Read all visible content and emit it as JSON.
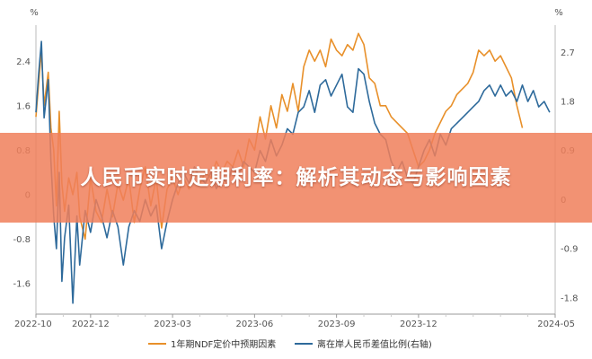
{
  "banner": {
    "title": "人民币实时定期利率：解析其动态与影响因素"
  },
  "chart_data": {
    "type": "line",
    "left_axis_unit": "%",
    "right_axis_unit": "%",
    "x_ticks": [
      "2022-10",
      "2022-12",
      "2023-03",
      "2023-06",
      "2023-09",
      "2023-12",
      "2024-05"
    ],
    "x_tick_positions": [
      0,
      2,
      5,
      8,
      11,
      14,
      19
    ],
    "x_range": [
      0,
      19
    ],
    "y_left_ticks": [
      2.4,
      1.6,
      0.8,
      0,
      -0.8,
      -1.6
    ],
    "y_left_tick_labels": [
      "2.4",
      "1.6",
      "0.8",
      "0",
      "-0.8",
      "-1.6"
    ],
    "y_left_range": [
      -2.15,
      3.05
    ],
    "y_right_ticks": [
      2.7,
      1.8,
      0.9,
      0,
      -0.9,
      -1.8
    ],
    "y_right_tick_labels": [
      "2.7",
      "1.8",
      "0.9",
      "0",
      "-0.9",
      "-1.8"
    ],
    "y_right_range": [
      -2.1,
      3.2
    ],
    "legend_position": "bottom",
    "grid": false,
    "series": [
      {
        "name": "1年期NDF定价中预期因素",
        "axis": "left",
        "color": "#e8902a",
        "points": [
          [
            0,
            1.4
          ],
          [
            0.1,
            2.0
          ],
          [
            0.2,
            2.6
          ],
          [
            0.3,
            1.6
          ],
          [
            0.45,
            2.2
          ],
          [
            0.55,
            1.2
          ],
          [
            0.65,
            0.8
          ],
          [
            0.75,
            -0.2
          ],
          [
            0.85,
            1.5
          ],
          [
            0.95,
            0.2
          ],
          [
            1.05,
            -0.3
          ],
          [
            1.2,
            0.3
          ],
          [
            1.35,
            0
          ],
          [
            1.5,
            0.4
          ],
          [
            1.6,
            -0.4
          ],
          [
            1.8,
            -0.8
          ],
          [
            2,
            0.3
          ],
          [
            2.2,
            -0.3
          ],
          [
            2.4,
            -0.5
          ],
          [
            2.6,
            0.1
          ],
          [
            2.8,
            -0.4
          ],
          [
            3,
            0.2
          ],
          [
            3.2,
            -0.1
          ],
          [
            3.4,
            0.3
          ],
          [
            3.6,
            -0.5
          ],
          [
            3.8,
            0.1
          ],
          [
            4,
            0.5
          ],
          [
            4.2,
            -0.2
          ],
          [
            4.4,
            0.3
          ],
          [
            4.6,
            -0.6
          ],
          [
            4.8,
            0.1
          ],
          [
            5,
            0.3
          ],
          [
            5.2,
            0
          ],
          [
            5.4,
            0.3
          ],
          [
            5.6,
            0.1
          ],
          [
            5.8,
            0.5
          ],
          [
            6,
            0.2
          ],
          [
            6.2,
            0.4
          ],
          [
            6.4,
            0.3
          ],
          [
            6.6,
            0.6
          ],
          [
            6.8,
            0.4
          ],
          [
            7,
            0.6
          ],
          [
            7.2,
            0.5
          ],
          [
            7.4,
            0.8
          ],
          [
            7.6,
            0.5
          ],
          [
            7.8,
            1.0
          ],
          [
            8,
            0.8
          ],
          [
            8.2,
            1.4
          ],
          [
            8.4,
            1.0
          ],
          [
            8.6,
            1.6
          ],
          [
            8.8,
            1.2
          ],
          [
            9,
            1.8
          ],
          [
            9.2,
            1.5
          ],
          [
            9.4,
            2.0
          ],
          [
            9.6,
            1.5
          ],
          [
            9.8,
            2.3
          ],
          [
            10,
            2.6
          ],
          [
            10.2,
            2.4
          ],
          [
            10.4,
            2.6
          ],
          [
            10.6,
            2.3
          ],
          [
            10.8,
            2.8
          ],
          [
            11,
            2.6
          ],
          [
            11.2,
            2.5
          ],
          [
            11.4,
            2.7
          ],
          [
            11.6,
            2.6
          ],
          [
            11.8,
            2.9
          ],
          [
            12,
            2.7
          ],
          [
            12.2,
            2.1
          ],
          [
            12.4,
            2.0
          ],
          [
            12.6,
            1.6
          ],
          [
            12.8,
            1.6
          ],
          [
            13,
            1.4
          ],
          [
            13.2,
            1.3
          ],
          [
            13.4,
            1.2
          ],
          [
            13.6,
            1.1
          ],
          [
            13.8,
            0.8
          ],
          [
            14,
            0.5
          ],
          [
            14.2,
            0.6
          ],
          [
            14.4,
            0.8
          ],
          [
            14.6,
            1.1
          ],
          [
            14.8,
            1.3
          ],
          [
            15,
            1.5
          ],
          [
            15.2,
            1.6
          ],
          [
            15.4,
            1.8
          ],
          [
            15.6,
            1.9
          ],
          [
            15.8,
            2.0
          ],
          [
            16,
            2.2
          ],
          [
            16.2,
            2.6
          ],
          [
            16.4,
            2.5
          ],
          [
            16.6,
            2.6
          ],
          [
            16.8,
            2.4
          ],
          [
            17,
            2.5
          ],
          [
            17.2,
            2.3
          ],
          [
            17.4,
            2.1
          ],
          [
            17.6,
            1.6
          ],
          [
            17.8,
            1.2
          ]
        ]
      },
      {
        "name": "离在岸人民币差值比例(右轴)",
        "axis": "right",
        "color": "#2e6a9b",
        "points": [
          [
            0,
            1.6
          ],
          [
            0.1,
            2.3
          ],
          [
            0.2,
            2.9
          ],
          [
            0.3,
            1.5
          ],
          [
            0.45,
            2.2
          ],
          [
            0.55,
            0.7
          ],
          [
            0.65,
            -0.3
          ],
          [
            0.75,
            -0.9
          ],
          [
            0.85,
            0.5
          ],
          [
            0.95,
            -1.5
          ],
          [
            1.05,
            -0.7
          ],
          [
            1.2,
            -0.1
          ],
          [
            1.35,
            -1.9
          ],
          [
            1.5,
            -0.3
          ],
          [
            1.6,
            -1.2
          ],
          [
            1.8,
            -0.2
          ],
          [
            2,
            -0.6
          ],
          [
            2.2,
            0
          ],
          [
            2.4,
            -0.3
          ],
          [
            2.6,
            -0.7
          ],
          [
            2.8,
            -0.2
          ],
          [
            3,
            -0.5
          ],
          [
            3.2,
            -1.2
          ],
          [
            3.4,
            -0.5
          ],
          [
            3.6,
            -0.2
          ],
          [
            3.8,
            -0.4
          ],
          [
            4,
            0
          ],
          [
            4.2,
            -0.3
          ],
          [
            4.4,
            -0.1
          ],
          [
            4.6,
            -0.9
          ],
          [
            4.8,
            -0.4
          ],
          [
            5,
            0
          ],
          [
            5.2,
            0.3
          ],
          [
            5.4,
            0.5
          ],
          [
            5.6,
            0.3
          ],
          [
            5.8,
            0.6
          ],
          [
            6,
            0.4
          ],
          [
            6.2,
            0.3
          ],
          [
            6.4,
            0.5
          ],
          [
            6.6,
            0.2
          ],
          [
            6.8,
            0.4
          ],
          [
            7,
            0.3
          ],
          [
            7.2,
            0.6
          ],
          [
            7.4,
            0.4
          ],
          [
            7.6,
            0.7
          ],
          [
            7.8,
            0.6
          ],
          [
            8,
            0.5
          ],
          [
            8.2,
            0.9
          ],
          [
            8.4,
            0.7
          ],
          [
            8.6,
            1.1
          ],
          [
            8.8,
            0.8
          ],
          [
            9,
            1.0
          ],
          [
            9.2,
            1.3
          ],
          [
            9.4,
            1.2
          ],
          [
            9.6,
            1.6
          ],
          [
            9.8,
            1.7
          ],
          [
            10,
            2.0
          ],
          [
            10.2,
            1.6
          ],
          [
            10.4,
            2.1
          ],
          [
            10.6,
            2.2
          ],
          [
            10.8,
            1.9
          ],
          [
            11,
            2.1
          ],
          [
            11.2,
            2.3
          ],
          [
            11.4,
            1.7
          ],
          [
            11.6,
            1.6
          ],
          [
            11.8,
            2.4
          ],
          [
            12,
            2.3
          ],
          [
            12.2,
            1.8
          ],
          [
            12.4,
            1.4
          ],
          [
            12.6,
            1.2
          ],
          [
            12.8,
            1.1
          ],
          [
            13,
            0.7
          ],
          [
            13.2,
            0.5
          ],
          [
            13.4,
            0.7
          ],
          [
            13.6,
            0.4
          ],
          [
            13.8,
            0.3
          ],
          [
            14,
            0.6
          ],
          [
            14.2,
            0.9
          ],
          [
            14.4,
            1.1
          ],
          [
            14.6,
            0.8
          ],
          [
            14.8,
            1.2
          ],
          [
            15,
            1.0
          ],
          [
            15.2,
            1.3
          ],
          [
            15.4,
            1.4
          ],
          [
            15.6,
            1.5
          ],
          [
            15.8,
            1.6
          ],
          [
            16,
            1.7
          ],
          [
            16.2,
            1.8
          ],
          [
            16.4,
            2.0
          ],
          [
            16.6,
            2.1
          ],
          [
            16.8,
            1.9
          ],
          [
            17,
            2.1
          ],
          [
            17.2,
            1.9
          ],
          [
            17.4,
            2.0
          ],
          [
            17.6,
            1.8
          ],
          [
            17.8,
            2.1
          ],
          [
            18,
            1.8
          ],
          [
            18.2,
            2.0
          ],
          [
            18.4,
            1.7
          ],
          [
            18.6,
            1.8
          ],
          [
            18.8,
            1.6
          ]
        ]
      }
    ]
  }
}
